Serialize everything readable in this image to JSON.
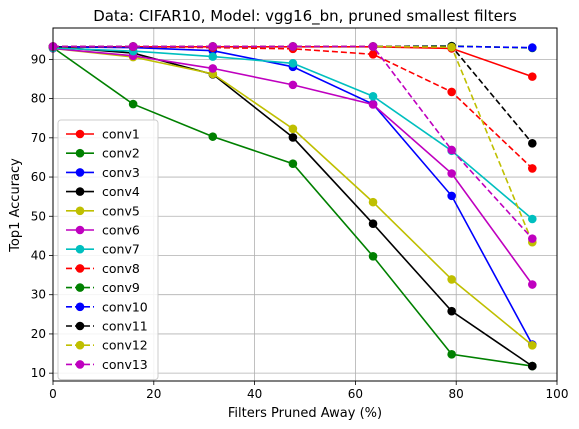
{
  "chart_data": {
    "type": "line",
    "title": "Data: CIFAR10, Model: vgg16_bn, pruned smallest filters",
    "xlabel": "Filters Pruned Away (%)",
    "ylabel": "Top1 Accuracy",
    "xlim": [
      0,
      100
    ],
    "ylim": [
      8,
      98
    ],
    "xticks": [
      0,
      20,
      40,
      60,
      80,
      100
    ],
    "yticks": [
      10,
      20,
      30,
      40,
      50,
      60,
      70,
      80,
      90
    ],
    "grid": true,
    "legend_position": "left",
    "x": [
      0,
      15.9,
      31.7,
      47.6,
      63.5,
      79.1,
      95.1
    ],
    "series": [
      {
        "name": "conv1",
        "color": "#ff0000",
        "linestyle": "solid",
        "values": [
          93.2,
          93.2,
          93.2,
          93.2,
          93.2,
          92.8,
          85.6
        ]
      },
      {
        "name": "conv2",
        "color": "#008000",
        "linestyle": "solid",
        "values": [
          93.0,
          78.6,
          70.3,
          63.4,
          39.8,
          14.8,
          11.8
        ]
      },
      {
        "name": "conv3",
        "color": "#0000ff",
        "linestyle": "solid",
        "values": [
          93.2,
          93.0,
          92.2,
          88.1,
          78.6,
          55.2,
          17.3
        ]
      },
      {
        "name": "conv4",
        "color": "#000000",
        "linestyle": "solid",
        "values": [
          93.2,
          91.6,
          86.2,
          70.1,
          48.1,
          25.8,
          11.8
        ]
      },
      {
        "name": "conv5",
        "color": "#bfbf00",
        "linestyle": "solid",
        "values": [
          92.8,
          90.6,
          86.3,
          72.3,
          53.6,
          33.9,
          17.1
        ]
      },
      {
        "name": "conv6",
        "color": "#bf00bf",
        "linestyle": "solid",
        "values": [
          92.8,
          90.9,
          87.7,
          83.5,
          78.5,
          60.9,
          32.6
        ]
      },
      {
        "name": "conv7",
        "color": "#00bfbf",
        "linestyle": "solid",
        "values": [
          92.9,
          92.1,
          90.7,
          89.0,
          80.6,
          66.7,
          49.3
        ]
      },
      {
        "name": "conv8",
        "color": "#ff0000",
        "linestyle": "dashed",
        "values": [
          93.2,
          93.2,
          93.0,
          92.7,
          91.3,
          81.7,
          62.2
        ]
      },
      {
        "name": "conv9",
        "color": "#008000",
        "linestyle": "dashed",
        "values": [
          93.2,
          93.3,
          93.3,
          93.3,
          93.3,
          93.4,
          92.9
        ]
      },
      {
        "name": "conv10",
        "color": "#0000ff",
        "linestyle": "dashed",
        "values": [
          93.3,
          93.3,
          93.3,
          93.3,
          93.3,
          93.3,
          93.0
        ]
      },
      {
        "name": "conv11",
        "color": "#000000",
        "linestyle": "dashed",
        "values": [
          93.3,
          93.3,
          93.3,
          93.3,
          93.3,
          93.3,
          68.6
        ]
      },
      {
        "name": "conv12",
        "color": "#bfbf00",
        "linestyle": "dashed",
        "values": [
          93.3,
          93.3,
          93.3,
          93.3,
          93.3,
          93.1,
          43.4
        ]
      },
      {
        "name": "conv13",
        "color": "#bf00bf",
        "linestyle": "dashed",
        "values": [
          93.3,
          93.3,
          93.3,
          93.3,
          93.3,
          66.9,
          44.3
        ]
      }
    ]
  }
}
